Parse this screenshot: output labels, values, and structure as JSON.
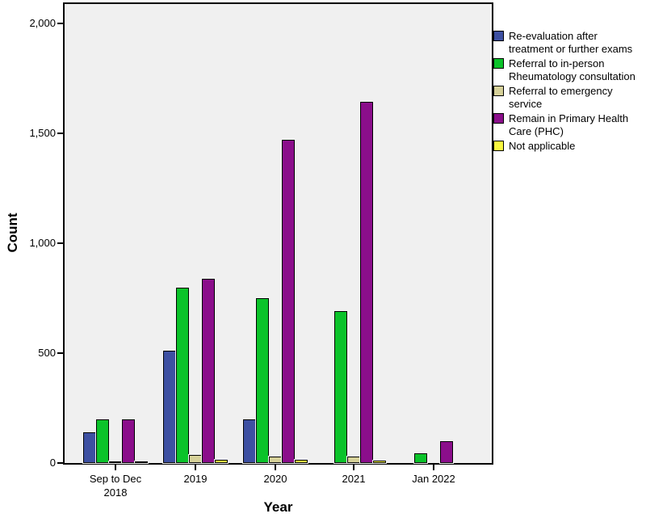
{
  "colors": {
    "canvas_bg": "#ffffff",
    "plot_bg": "#f0f0f0",
    "axis": "#000000",
    "bar_outline": "#000000"
  },
  "chart_data": {
    "type": "bar",
    "title": "",
    "xlabel": "Year",
    "ylabel": "Count",
    "ylim": [
      0,
      2090
    ],
    "grid": false,
    "legend_position": "top-right-outside",
    "yticks": [
      0,
      500,
      1000,
      1500,
      2000
    ],
    "ytick_labels": [
      "0",
      "500",
      "1,000",
      "1,500",
      "2,000"
    ],
    "categories": [
      "Sep to Dec 2018",
      "2019",
      "2020",
      "2021",
      "Jan 2022"
    ],
    "xtick_labels": [
      "Sep to Dec\n2018",
      "2019",
      "2020",
      "2021",
      "Jan 2022"
    ],
    "series": [
      {
        "name": "Re-evaluation after treatment or further exams",
        "legend_label": "Re-evaluation after\ntreatment or further exams",
        "color": "#3d50a2",
        "values": [
          140,
          510,
          200,
          0,
          0
        ]
      },
      {
        "name": "Referral to in-person Rheumatology consultation",
        "legend_label": "Referral to in-person\nRheumatology consultation",
        "color": "#0bc32a",
        "values": [
          200,
          800,
          750,
          690,
          45
        ]
      },
      {
        "name": "Referral to emergency service",
        "legend_label": "Referral to emergency\nservice",
        "color": "#d6d199",
        "values": [
          8,
          35,
          30,
          30,
          0
        ]
      },
      {
        "name": "Remain in Primary Health Care (PHC)",
        "legend_label": "Remain in Primary Health\nCare (PHC)",
        "color": "#8b0e8b",
        "values": [
          200,
          840,
          1470,
          1645,
          100
        ]
      },
      {
        "name": "Not applicable",
        "legend_label": "Not applicable",
        "color": "#f8f73f",
        "values": [
          8,
          15,
          15,
          12,
          0
        ]
      }
    ]
  }
}
